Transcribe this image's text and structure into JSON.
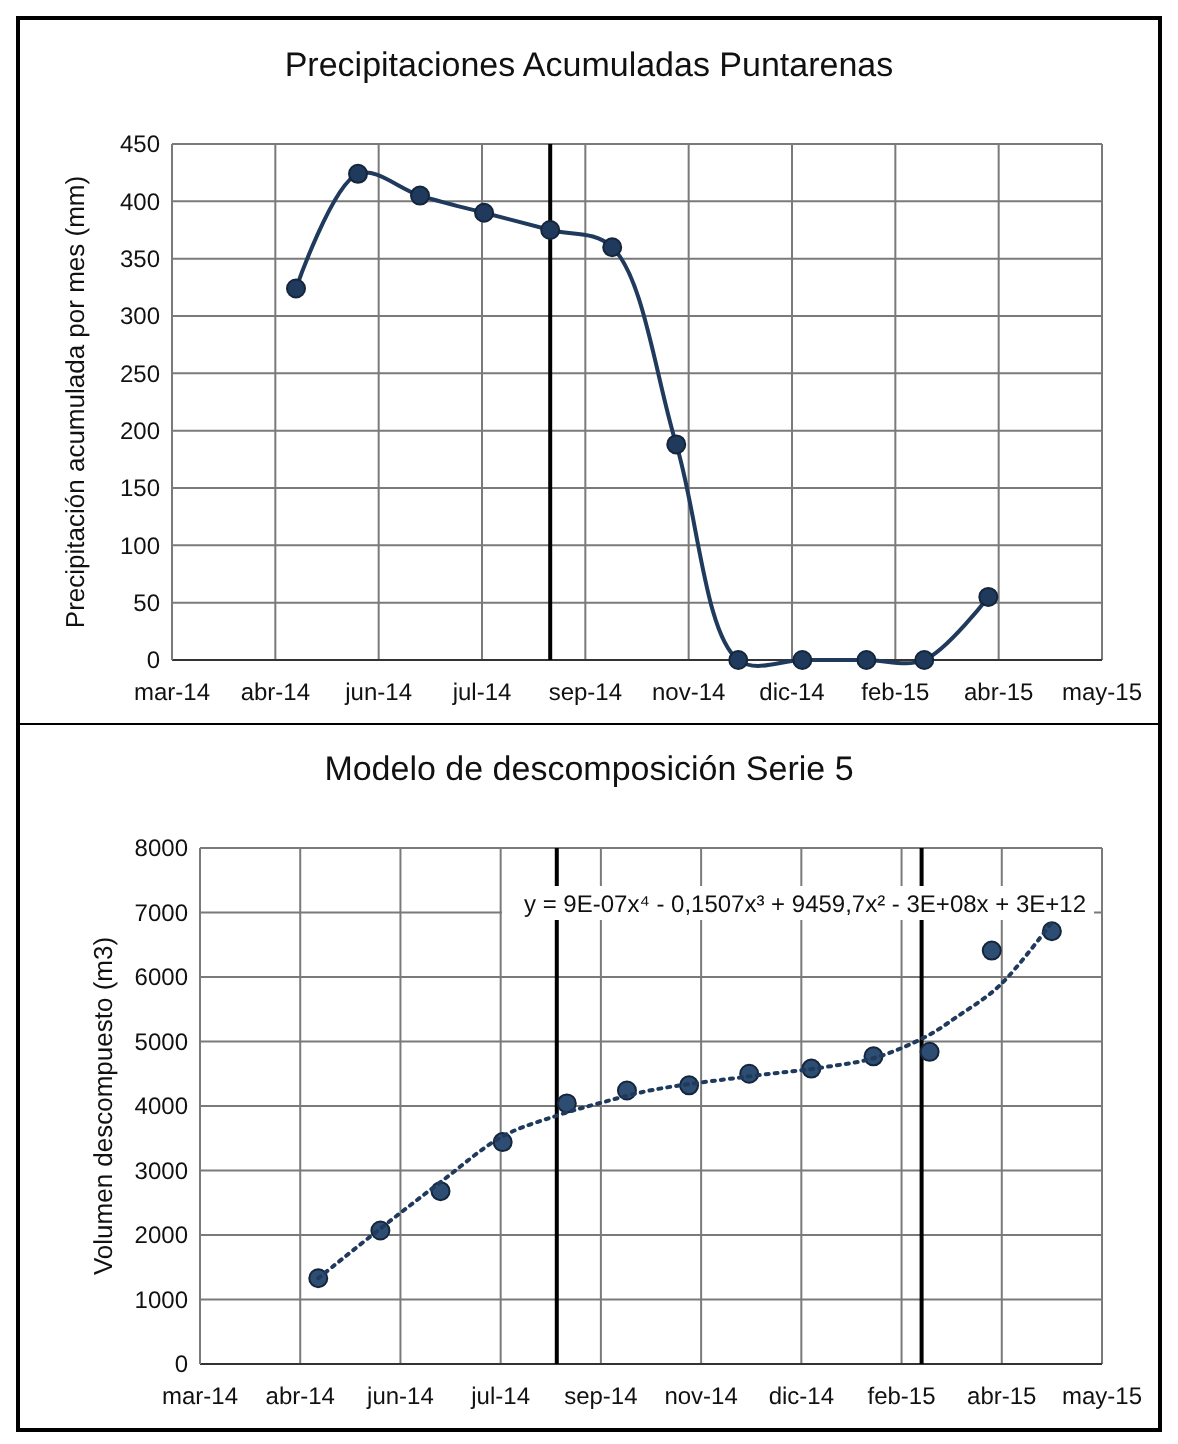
{
  "chart_data": [
    {
      "type": "line",
      "title": "Precipitaciones Acumuladas Puntarenas",
      "ylabel": "Precipitación acumulada por mes (mm)",
      "x": [
        "2014-04-30",
        "2014-05-30",
        "2014-06-29",
        "2014-07-30",
        "2014-08-31",
        "2014-09-30",
        "2014-10-31",
        "2014-11-30",
        "2014-12-31",
        "2015-01-31",
        "2015-02-28",
        "2015-03-31"
      ],
      "series": [
        {
          "color": "#1f3a5c",
          "values": [
            324,
            424,
            405,
            390,
            375,
            360,
            188,
            0,
            0,
            0,
            0,
            55
          ]
        }
      ],
      "xlim": [
        "2014-03-01",
        "2015-05-25"
      ],
      "xticks": [
        {
          "value": "2014-03-01",
          "label": "mar-14"
        },
        {
          "value": "2014-04-20",
          "label": "abr-14"
        },
        {
          "value": "2014-06-09",
          "label": "jun-14"
        },
        {
          "value": "2014-07-29",
          "label": "jul-14"
        },
        {
          "value": "2014-09-17",
          "label": "sep-14"
        },
        {
          "value": "2014-11-06",
          "label": "nov-14"
        },
        {
          "value": "2014-12-26",
          "label": "dic-14"
        },
        {
          "value": "2015-02-14",
          "label": "feb-15"
        },
        {
          "value": "2015-04-05",
          "label": "abr-15"
        },
        {
          "value": "2015-05-25",
          "label": "may-15"
        }
      ],
      "ylim": [
        0,
        450
      ],
      "yticks": [
        0,
        50,
        100,
        150,
        200,
        250,
        300,
        350,
        400,
        450
      ],
      "grid": true,
      "marker": "circle",
      "line_style": "solid",
      "ref_lines": [
        {
          "axis": "x",
          "value": "2014-08-31",
          "color": "#000000"
        }
      ]
    },
    {
      "type": "scatter",
      "title": "Modelo de descomposición  Serie 5",
      "ylabel": "Volumen descompuesto (m3)",
      "x": [
        "2014-04-29",
        "2014-05-30",
        "2014-06-29",
        "2014-07-30",
        "2014-08-31",
        "2014-09-30",
        "2014-10-31",
        "2014-11-30",
        "2014-12-31",
        "2015-01-31",
        "2015-02-28",
        "2015-03-31",
        "2015-04-30"
      ],
      "series": [
        {
          "color": "#2e4d73",
          "values": [
            1330,
            2070,
            2680,
            3440,
            4040,
            4240,
            4320,
            4500,
            4580,
            4770,
            4840,
            6410,
            6710
          ]
        },
        {
          "type": "line",
          "color": "#1f3a5c",
          "line_style": "dotted",
          "marker": "none",
          "x": [
            "2014-04-29",
            "2014-05-30",
            "2014-06-29",
            "2014-07-30",
            "2014-08-26",
            "2014-09-17",
            "2014-10-13",
            "2014-11-30",
            "2015-01-06",
            "2015-02-01",
            "2015-02-27",
            "2015-03-13",
            "2015-04-04",
            "2015-04-30"
          ],
          "values": [
            1330,
            2100,
            2820,
            3530,
            3850,
            4050,
            4250,
            4460,
            4600,
            4750,
            5090,
            5370,
            5870,
            6850
          ]
        }
      ],
      "xlim": [
        "2014-03-01",
        "2015-05-25"
      ],
      "xticks": [
        {
          "value": "2014-03-01",
          "label": "mar-14"
        },
        {
          "value": "2014-04-20",
          "label": "abr-14"
        },
        {
          "value": "2014-06-09",
          "label": "jun-14"
        },
        {
          "value": "2014-07-29",
          "label": "jul-14"
        },
        {
          "value": "2014-09-17",
          "label": "sep-14"
        },
        {
          "value": "2014-11-06",
          "label": "nov-14"
        },
        {
          "value": "2014-12-26",
          "label": "dic-14"
        },
        {
          "value": "2015-02-14",
          "label": "feb-15"
        },
        {
          "value": "2015-04-05",
          "label": "abr-15"
        },
        {
          "value": "2015-05-25",
          "label": "may-15"
        }
      ],
      "ylim": [
        0,
        8000
      ],
      "yticks": [
        0,
        1000,
        2000,
        3000,
        4000,
        5000,
        6000,
        7000,
        8000
      ],
      "grid": true,
      "marker": "circle",
      "annotations": [
        "y = 9E-07x⁴ - 0,1507x³ + 9459,7x² - 3E+08x + 3E+12"
      ],
      "ref_lines": [
        {
          "axis": "x",
          "value": "2014-08-26",
          "color": "#000000"
        },
        {
          "axis": "x",
          "value": "2015-02-24",
          "color": "#000000"
        }
      ]
    }
  ]
}
